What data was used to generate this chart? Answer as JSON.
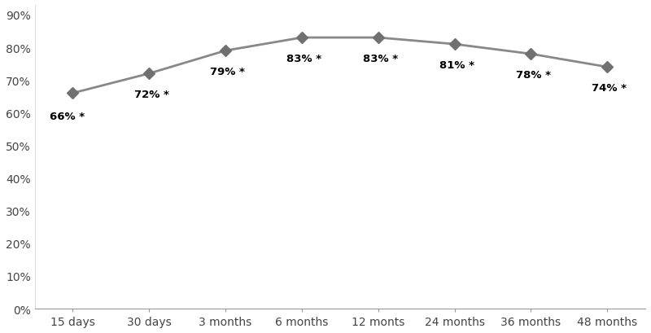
{
  "x_labels": [
    "15 days",
    "30 days",
    "3 months",
    "6 months",
    "12 monts",
    "24 months",
    "36 months",
    "48 months"
  ],
  "y_values": [
    0.66,
    0.72,
    0.79,
    0.83,
    0.83,
    0.81,
    0.78,
    0.74
  ],
  "annotations": [
    "66% *",
    "72% *",
    "79% *",
    "83% *",
    "83% *",
    "81% *",
    "78% *",
    "74% *"
  ],
  "line_color": "#888888",
  "marker_color": "#707070",
  "ylim": [
    0.0,
    0.93
  ],
  "yticks": [
    0.0,
    0.1,
    0.2,
    0.3,
    0.4,
    0.5,
    0.6,
    0.7,
    0.8,
    0.9
  ],
  "background_color": "#ffffff",
  "annotation_fontsize": 9.5,
  "line_width": 2.0,
  "marker_size": 7
}
